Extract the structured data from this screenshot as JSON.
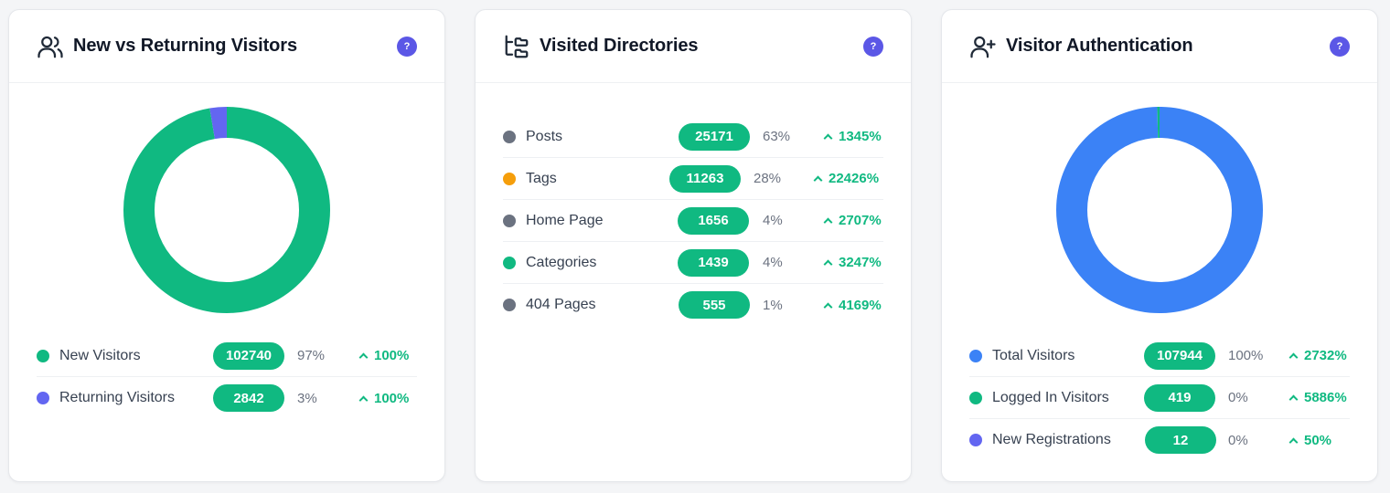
{
  "cards": [
    {
      "title": "New vs Returning Visitors",
      "icon": "users-icon",
      "help": "?",
      "donut": [
        {
          "label": "New Visitors",
          "fraction": 0.9731,
          "color": "#10b981"
        },
        {
          "label": "Returning Visitors",
          "fraction": 0.0269,
          "color": "#6366f1"
        }
      ],
      "rows": [
        {
          "label": "New Visitors",
          "value": "102740",
          "pct": "97%",
          "change": "100%",
          "color": "#10b981"
        },
        {
          "label": "Returning Visitors",
          "value": "2842",
          "pct": "3%",
          "change": "100%",
          "color": "#6366f1"
        }
      ]
    },
    {
      "title": "Visited Directories",
      "icon": "folder-tree-icon",
      "help": "?",
      "rows": [
        {
          "label": "Posts",
          "value": "25171",
          "pct": "63%",
          "change": "1345%",
          "color": "#6b7280"
        },
        {
          "label": "Tags",
          "value": "11263",
          "pct": "28%",
          "change": "22426%",
          "color": "#f59e0b"
        },
        {
          "label": "Home Page",
          "value": "1656",
          "pct": "4%",
          "change": "2707%",
          "color": "#6b7280"
        },
        {
          "label": "Categories",
          "value": "1439",
          "pct": "4%",
          "change": "3247%",
          "color": "#10b981"
        },
        {
          "label": "404 Pages",
          "value": "555",
          "pct": "1%",
          "change": "4169%",
          "color": "#6b7280"
        }
      ]
    },
    {
      "title": "Visitor Authentication",
      "icon": "user-plus-icon",
      "help": "?",
      "donut": [
        {
          "label": "Total Visitors",
          "fraction": 0.996,
          "color": "#3b82f6"
        },
        {
          "label": "Logged In Visitors",
          "fraction": 0.004,
          "color": "#10b981"
        }
      ],
      "rows": [
        {
          "label": "Total Visitors",
          "value": "107944",
          "pct": "100%",
          "change": "2732%",
          "color": "#3b82f6"
        },
        {
          "label": "Logged In Visitors",
          "value": "419",
          "pct": "0%",
          "change": "5886%",
          "color": "#10b981"
        },
        {
          "label": "New Registrations",
          "value": "12",
          "pct": "0%",
          "change": "50%",
          "color": "#6366f1"
        }
      ]
    }
  ]
}
